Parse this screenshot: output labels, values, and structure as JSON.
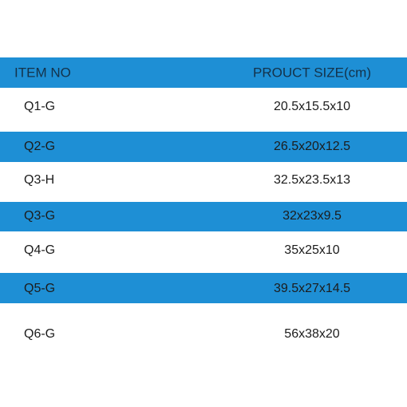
{
  "table": {
    "header": [
      "ITEM NO",
      "PROUCT SIZE(cm)"
    ],
    "rows": [
      [
        "Q1-G",
        "20.5x15.5x10"
      ],
      [
        "Q2-G",
        "26.5x20x12.5"
      ],
      [
        "Q3-H",
        "32.5x23.5x13"
      ],
      [
        "Q3-G",
        "32x23x9.5"
      ],
      [
        "Q4-G",
        "35x25x10"
      ],
      [
        "Q5-G",
        "39.5x27x14.5"
      ],
      [
        "Q6-G",
        "56x38x20"
      ]
    ]
  }
}
